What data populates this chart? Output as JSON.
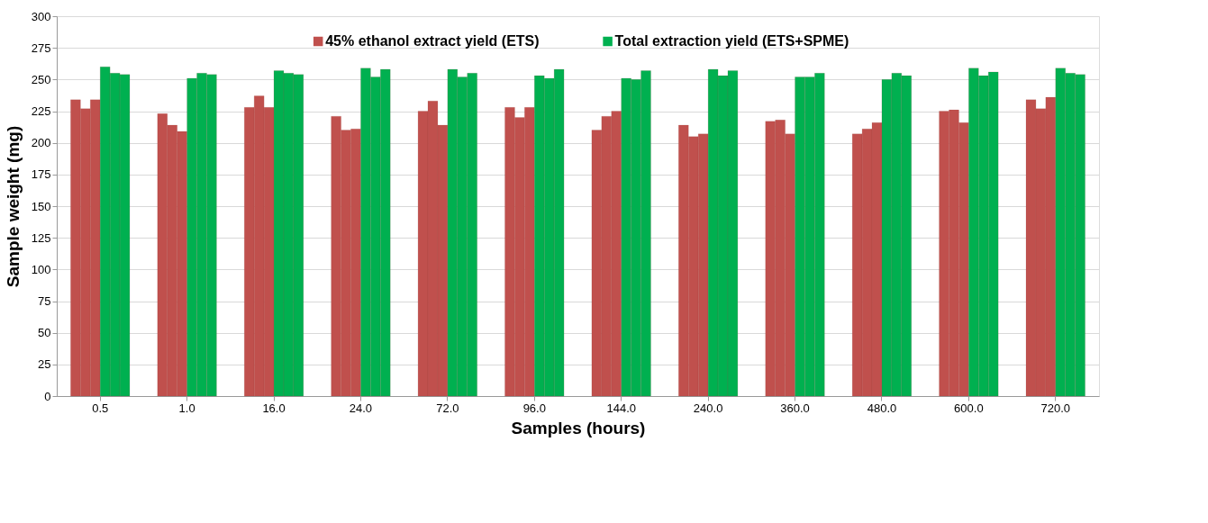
{
  "chart_data": {
    "type": "bar",
    "xlabel": "Samples (hours)",
    "ylabel": "Sample weight (mg)",
    "categories": [
      "0.5",
      "1.0",
      "16.0",
      "24.0",
      "72.0",
      "96.0",
      "144.0",
      "240.0",
      "360.0",
      "480.0",
      "600.0",
      "720.0"
    ],
    "series": [
      {
        "name": "45% ethanol extract yield (ETS)",
        "color": "#c0504d",
        "values": [
          234,
          223,
          228,
          221,
          225,
          228,
          210,
          214,
          217,
          207,
          225,
          234
        ]
      },
      {
        "color": "#c0504d",
        "values": [
          227,
          214,
          237,
          210,
          233,
          220,
          221,
          205,
          218,
          211,
          226,
          227
        ]
      },
      {
        "color": "#c0504d",
        "values": [
          234,
          209,
          228,
          211,
          214,
          228,
          225,
          207,
          207,
          216,
          216,
          236
        ]
      },
      {
        "name": "Total extraction yield (ETS+SPME)",
        "color": "#00b050",
        "values": [
          260,
          251,
          257,
          259,
          258,
          253,
          251,
          258,
          252,
          250,
          259,
          259
        ]
      },
      {
        "color": "#00b050",
        "values": [
          255,
          255,
          255,
          252,
          252,
          251,
          250,
          253,
          252,
          255,
          253,
          255
        ]
      },
      {
        "color": "#00b050",
        "values": [
          254,
          254,
          254,
          258,
          255,
          258,
          257,
          257,
          255,
          253,
          256,
          254
        ]
      }
    ],
    "ylim": [
      0,
      300
    ],
    "yticks": [
      0,
      25,
      50,
      75,
      100,
      125,
      150,
      175,
      200,
      225,
      250,
      275,
      300
    ],
    "grid": "y",
    "legend": "top"
  }
}
